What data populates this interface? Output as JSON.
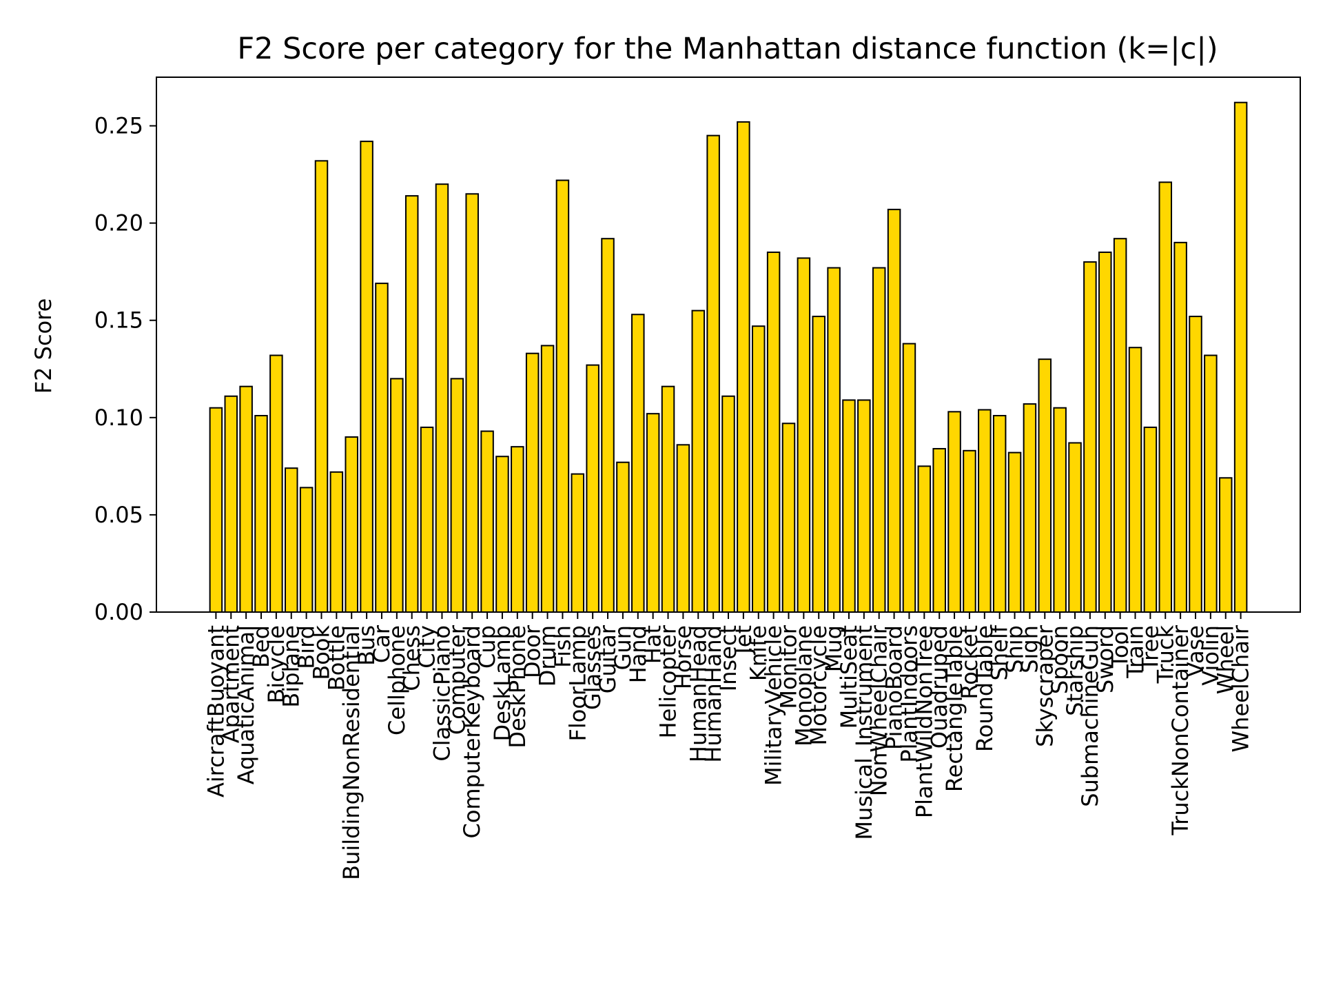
{
  "chart_data": {
    "type": "bar",
    "title": "F2 Score per category for the Manhattan distance function (k=|c|)",
    "xlabel": "",
    "ylabel": "F2 Score",
    "ylim": [
      0,
      0.275
    ],
    "yticks": [
      "0.00",
      "0.05",
      "0.10",
      "0.15",
      "0.20",
      "0.25"
    ],
    "bar_color": "#FFD700",
    "edge_color": "#000000",
    "grid": false,
    "legend": false,
    "categories": [
      "AircraftBuoyant",
      "Apartment",
      "AquaticAnimal",
      "Bed",
      "Bicycle",
      "Biplane",
      "Bird",
      "Book",
      "Bottle",
      "BuildingNonResidential",
      "Bus",
      "Car",
      "Cellphone",
      "Chess",
      "City",
      "ClassicPiano",
      "Computer",
      "ComputerKeyboard",
      "Cup",
      "DeskLamp",
      "DeskPhone",
      "Door",
      "Drum",
      "Fish",
      "FloorLamp",
      "Glasses",
      "Guitar",
      "Gun",
      "Hand",
      "Hat",
      "Helicopter",
      "Horse",
      "HumanHead",
      "HumanHand",
      "Insect",
      "Jet",
      "Knife",
      "MilitaryVehicle",
      "Monitor",
      "Monoplane",
      "Motorcycle",
      "Mug",
      "MultiSeat",
      "Musical_Instrument",
      "NonWheelChair",
      "PianoBoard",
      "PlantIndoors",
      "PlantWildNonTree",
      "Quadruped",
      "RectangleTable",
      "Rocket",
      "RoundTable",
      "Shelf",
      "Ship",
      "Sign",
      "Skyscraper",
      "Spoon",
      "Starship",
      "SubmachineGun",
      "Sword",
      "Tool",
      "Train",
      "Tree",
      "Truck",
      "TruckNonContainer",
      "Vase",
      "Violin",
      "Wheel",
      "WheelChair"
    ],
    "values": [
      0.105,
      0.111,
      0.116,
      0.101,
      0.132,
      0.074,
      0.064,
      0.232,
      0.072,
      0.09,
      0.242,
      0.169,
      0.12,
      0.214,
      0.095,
      0.22,
      0.12,
      0.215,
      0.093,
      0.08,
      0.085,
      0.133,
      0.137,
      0.222,
      0.071,
      0.127,
      0.192,
      0.077,
      0.153,
      0.102,
      0.116,
      0.086,
      0.155,
      0.245,
      0.111,
      0.252,
      0.147,
      0.185,
      0.097,
      0.182,
      0.152,
      0.177,
      0.109,
      0.109,
      0.177,
      0.207,
      0.138,
      0.075,
      0.084,
      0.103,
      0.083,
      0.104,
      0.101,
      0.082,
      0.107,
      0.13,
      0.105,
      0.087,
      0.18,
      0.185,
      0.192,
      0.136,
      0.095,
      0.221,
      0.19,
      0.152,
      0.132,
      0.069,
      0.262
    ]
  }
}
